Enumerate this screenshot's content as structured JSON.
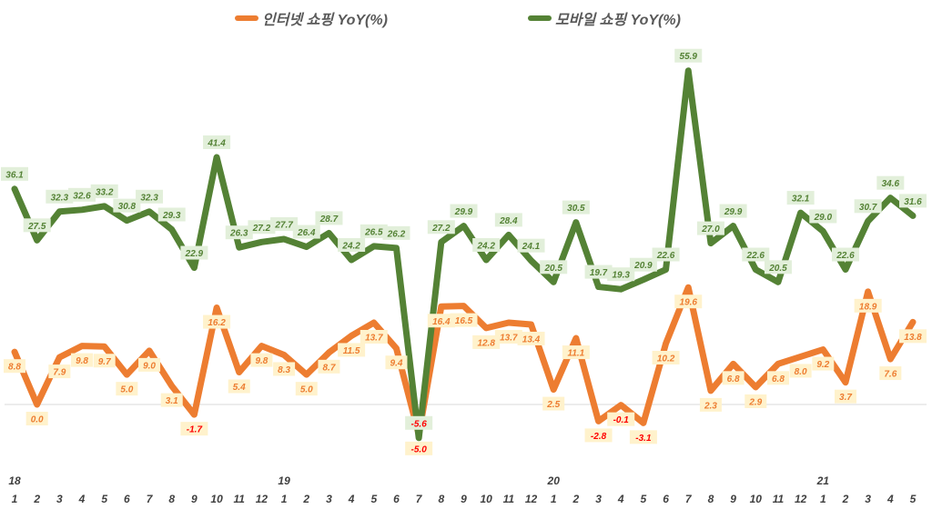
{
  "chart_data": {
    "type": "line",
    "title": "",
    "xlabel": "",
    "ylabel": "",
    "legend_position": "top",
    "grid": false,
    "zero_line": true,
    "year_labels": [
      {
        "label": "18",
        "index": 0
      },
      {
        "label": "19",
        "index": 12
      },
      {
        "label": "20",
        "index": 24
      },
      {
        "label": "21",
        "index": 36
      }
    ],
    "categories": [
      "1",
      "2",
      "3",
      "4",
      "5",
      "6",
      "7",
      "8",
      "9",
      "10",
      "11",
      "12",
      "1",
      "2",
      "3",
      "4",
      "5",
      "6",
      "7",
      "8",
      "9",
      "10",
      "11",
      "12",
      "1",
      "2",
      "3",
      "4",
      "5",
      "6",
      "7",
      "8",
      "9",
      "10",
      "11",
      "12",
      "1",
      "2",
      "3",
      "4",
      "5"
    ],
    "series": [
      {
        "name": "인터넷 쇼핑 YoY(%)",
        "color": "#ed7d31",
        "label_bg": "#fff2cc",
        "values": [
          8.8,
          0.0,
          7.9,
          9.8,
          9.7,
          5.0,
          9.0,
          3.1,
          -1.7,
          16.2,
          5.4,
          9.8,
          8.3,
          5.0,
          8.7,
          11.5,
          13.7,
          9.4,
          -5.0,
          16.4,
          16.5,
          12.8,
          13.7,
          13.4,
          2.5,
          11.1,
          -2.8,
          -0.1,
          -3.1,
          10.2,
          19.6,
          2.3,
          6.8,
          2.9,
          6.8,
          8.0,
          9.2,
          3.7,
          18.9,
          7.6,
          13.8
        ]
      },
      {
        "name": "모바일 쇼핑 YoY(%)",
        "color": "#548235",
        "label_bg": "#e2efda",
        "values": [
          36.1,
          27.5,
          32.3,
          32.6,
          33.2,
          30.8,
          32.3,
          29.3,
          22.9,
          41.4,
          26.3,
          27.2,
          27.7,
          26.4,
          28.7,
          24.2,
          26.5,
          26.2,
          -5.6,
          27.2,
          29.9,
          24.2,
          28.4,
          24.1,
          20.5,
          30.5,
          19.7,
          19.3,
          20.9,
          22.6,
          55.9,
          27.0,
          29.9,
          22.6,
          20.5,
          32.1,
          29.0,
          22.6,
          30.7,
          34.6,
          31.6
        ]
      }
    ],
    "negative_label_color": "#ff0000"
  }
}
